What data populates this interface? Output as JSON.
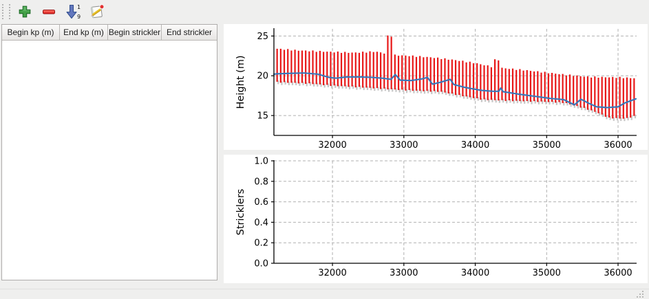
{
  "toolbar": {
    "buttons": [
      {
        "label": "add",
        "icon": "plus-icon"
      },
      {
        "label": "remove",
        "icon": "minus-icon"
      },
      {
        "label": "sort",
        "icon": "sort-numeric-down-icon"
      },
      {
        "label": "edit",
        "icon": "edit-note-icon"
      }
    ]
  },
  "table": {
    "columns": [
      "Begin kp (m)",
      "End kp (m)",
      "Begin strickler",
      "End strickler"
    ],
    "rows": []
  },
  "chart_data": [
    {
      "type": "line+bars",
      "title": "",
      "xlabel": "",
      "ylabel": "Height (m)",
      "xlim": [
        31180,
        36260
      ],
      "ylim": [
        12.5,
        25.9
      ],
      "xticks": [
        32000,
        33000,
        34000,
        35000,
        36000
      ],
      "xtick_labels": [
        "32000",
        "33000",
        "34000",
        "35000",
        "36000"
      ],
      "yticks": [
        15,
        20,
        25
      ],
      "ytick_labels": [
        "15",
        "20",
        "25"
      ],
      "grid": "dashed",
      "grid_color": "#b0b0b0",
      "bars": {
        "color": "#e81717",
        "shadow_color": "#c6c6c6",
        "spacing": 50,
        "x_start": 31225,
        "x_end": 36225,
        "top_envelope": [
          [
            31225,
            23.4
          ],
          [
            31500,
            23.2
          ],
          [
            32000,
            23.0
          ],
          [
            32300,
            22.9
          ],
          [
            32600,
            23.05
          ],
          [
            32750,
            22.8
          ],
          [
            32775,
            25.0
          ],
          [
            32850,
            25.0
          ],
          [
            32870,
            22.6
          ],
          [
            33100,
            22.5
          ],
          [
            33400,
            22.3
          ],
          [
            33700,
            22.0
          ],
          [
            34000,
            21.6
          ],
          [
            34250,
            21.1
          ],
          [
            34275,
            22.0
          ],
          [
            34325,
            22.0
          ],
          [
            34350,
            21.0
          ],
          [
            34700,
            20.7
          ],
          [
            35000,
            20.4
          ],
          [
            35300,
            20.1
          ],
          [
            35600,
            19.85
          ],
          [
            36000,
            19.8
          ],
          [
            36225,
            19.7
          ]
        ],
        "bottom_envelope": [
          [
            31225,
            19.2
          ],
          [
            31700,
            19.0
          ],
          [
            32000,
            18.75
          ],
          [
            32400,
            18.55
          ],
          [
            32800,
            18.3
          ],
          [
            33200,
            18.1
          ],
          [
            33510,
            18.0
          ],
          [
            33800,
            17.5
          ],
          [
            34100,
            17.0
          ],
          [
            34500,
            16.85
          ],
          [
            35050,
            16.7
          ],
          [
            35250,
            16.6
          ],
          [
            35530,
            15.9
          ],
          [
            35700,
            15.4
          ],
          [
            35870,
            14.7
          ],
          [
            36100,
            14.6
          ],
          [
            36225,
            14.9
          ]
        ]
      },
      "line": {
        "name": "height",
        "color": "#3a77b8",
        "width": 2.2,
        "points": [
          [
            31180,
            20.2
          ],
          [
            31225,
            20.25
          ],
          [
            31400,
            20.3
          ],
          [
            31600,
            20.35
          ],
          [
            31800,
            20.2
          ],
          [
            31950,
            19.8
          ],
          [
            32050,
            19.7
          ],
          [
            32200,
            19.85
          ],
          [
            32400,
            19.85
          ],
          [
            32550,
            19.8
          ],
          [
            32700,
            19.7
          ],
          [
            32820,
            19.55
          ],
          [
            32880,
            20.15
          ],
          [
            32950,
            19.45
          ],
          [
            33100,
            19.4
          ],
          [
            33250,
            19.6
          ],
          [
            33330,
            19.8
          ],
          [
            33400,
            18.95
          ],
          [
            33500,
            19.15
          ],
          [
            33650,
            19.55
          ],
          [
            33700,
            18.9
          ],
          [
            33850,
            18.55
          ],
          [
            34000,
            18.3
          ],
          [
            34100,
            18.15
          ],
          [
            34250,
            18.05
          ],
          [
            34330,
            18.05
          ],
          [
            34356,
            18.45
          ],
          [
            34390,
            18.0
          ],
          [
            34600,
            17.7
          ],
          [
            34850,
            17.4
          ],
          [
            35050,
            17.15
          ],
          [
            35240,
            17.0
          ],
          [
            35390,
            16.35
          ],
          [
            35480,
            17.05
          ],
          [
            35600,
            16.5
          ],
          [
            35700,
            16.1
          ],
          [
            35850,
            16.0
          ],
          [
            36000,
            16.1
          ],
          [
            36100,
            16.6
          ],
          [
            36250,
            17.1
          ]
        ]
      }
    },
    {
      "type": "line",
      "title": "",
      "xlabel": "",
      "ylabel": "Stricklers",
      "xlim": [
        31180,
        36260
      ],
      "ylim": [
        0.0,
        1.0
      ],
      "xticks": [
        32000,
        33000,
        34000,
        35000,
        36000
      ],
      "xtick_labels": [
        "32000",
        "33000",
        "34000",
        "35000",
        "36000"
      ],
      "yticks": [
        0.0,
        0.2,
        0.4,
        0.6,
        0.8,
        1.0
      ],
      "ytick_labels": [
        "0.0",
        "0.2",
        "0.4",
        "0.6",
        "0.8",
        "1.0"
      ],
      "grid": "dashed",
      "grid_color": "#b0b0b0",
      "line": {
        "name": "stricklers",
        "color": "#3a77b8",
        "width": 2.2,
        "points": []
      }
    }
  ]
}
